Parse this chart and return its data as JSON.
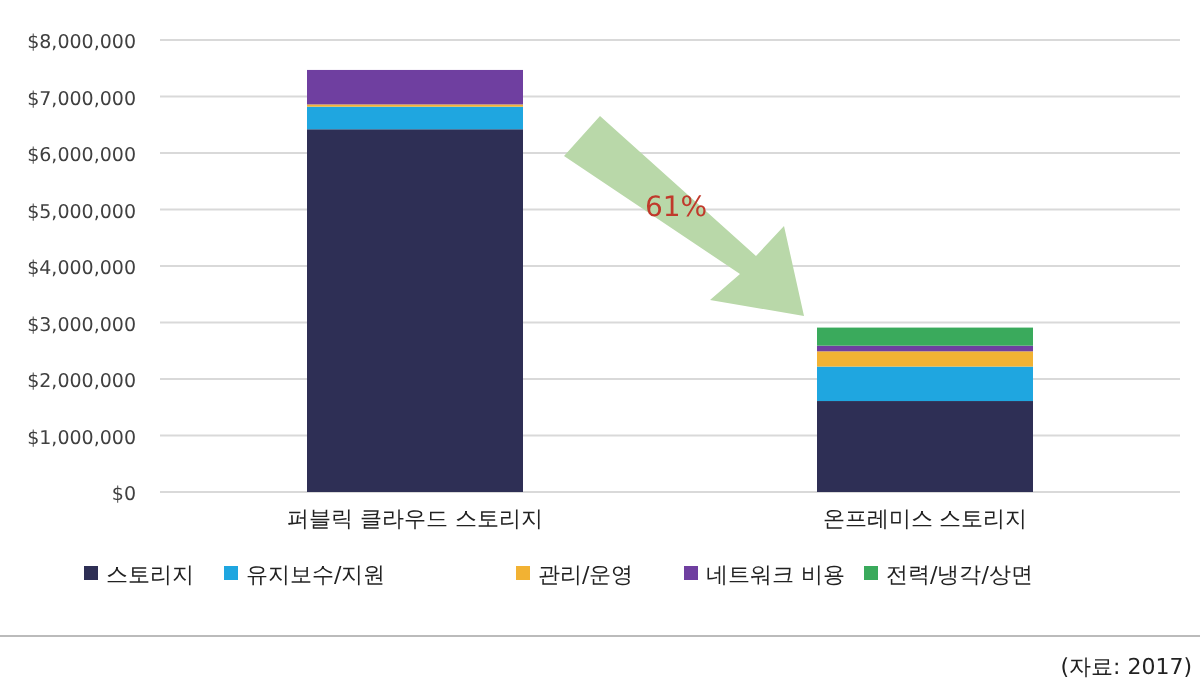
{
  "chart_data": {
    "type": "bar",
    "stacked": true,
    "categories": [
      "퍼블릭 클라우드 스토리지",
      "온프레미스 스토리지"
    ],
    "series": [
      {
        "name": "스토리지",
        "color": "#2e2f55",
        "values": [
          6420000,
          1610000
        ]
      },
      {
        "name": "유지보수/지원",
        "color": "#1fa6e0",
        "values": [
          400000,
          610000
        ]
      },
      {
        "name": "관리/운영",
        "color": "#f2b233",
        "values": [
          40000,
          270000
        ]
      },
      {
        "name": "네트워크 비용",
        "color": "#6f3fa0",
        "values": [
          610000,
          100000
        ]
      },
      {
        "name": "전력/냉각/상면",
        "color": "#3aaa5c",
        "values": [
          0,
          320000
        ]
      }
    ],
    "ylim": [
      0,
      8000000
    ],
    "yticks": [
      {
        "value": 0,
        "label": "$0"
      },
      {
        "value": 1000000,
        "label": "$1,000,000"
      },
      {
        "value": 2000000,
        "label": "$2,000,000"
      },
      {
        "value": 3000000,
        "label": "$3,000,000"
      },
      {
        "value": 4000000,
        "label": "$4,000,000"
      },
      {
        "value": 5000000,
        "label": "$5,000,000"
      },
      {
        "value": 6000000,
        "label": "$6,000,000"
      },
      {
        "value": 7000000,
        "label": "$7,000,000"
      },
      {
        "value": 8000000,
        "label": "$8,000,000"
      }
    ],
    "grid": "y",
    "legend": "bottom",
    "annotations": [
      "61%",
      "(자료: 2017)"
    ]
  }
}
